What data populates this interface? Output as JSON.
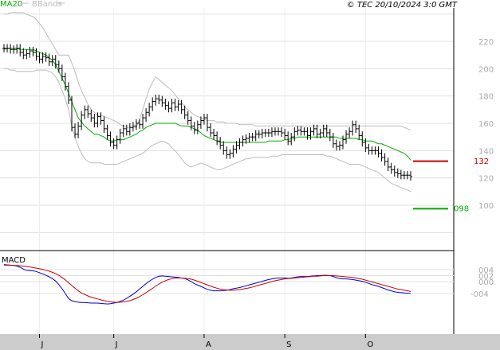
{
  "header": {
    "ma_label": "MA20",
    "bb_label": "BBands",
    "copyright": "© TEC 20/10/2024 3:0 GMT"
  },
  "macd_label": "MACD",
  "colors": {
    "price": "#000000",
    "ma": "#00aa00",
    "bbands": "#bbbbbb",
    "resistance": "#cc0000",
    "support": "#00aa00",
    "macd": "#0000cc",
    "signal": "#cc0000",
    "grid": "#e0e0e0",
    "frame": "#000000"
  },
  "levels": {
    "resistance": {
      "value": 132,
      "label": "132"
    },
    "support": {
      "value": 98,
      "label": "098"
    }
  },
  "chart_data": [
    {
      "type": "ohlc",
      "ylim": [
        72,
        245
      ],
      "yticks": [
        100,
        120,
        140,
        160,
        180,
        200,
        220
      ],
      "ytick_labels": [
        "100",
        "120",
        "140",
        "160",
        "180",
        "200",
        "220"
      ],
      "xlabels": [
        "J",
        "J",
        "A",
        "S",
        "O"
      ],
      "xlabel_index": [
        11,
        34,
        62,
        87,
        112
      ],
      "grid": true,
      "num_bars": 127,
      "close": [
        215,
        215,
        214,
        214,
        215,
        212,
        210,
        211,
        213,
        212,
        209,
        207,
        209,
        208,
        205,
        207,
        203,
        200,
        194,
        187,
        177,
        157,
        152,
        158,
        166,
        170,
        167,
        164,
        160,
        165,
        162,
        156,
        151,
        146,
        144,
        148,
        153,
        156,
        154,
        157,
        158,
        160,
        159,
        164,
        168,
        172,
        176,
        178,
        177,
        175,
        173,
        171,
        175,
        172,
        174,
        170,
        166,
        162,
        158,
        155,
        159,
        162,
        164,
        157,
        153,
        151,
        147,
        144,
        140,
        137,
        138,
        141,
        144,
        146,
        148,
        149,
        150,
        150,
        152,
        152,
        153,
        153,
        153,
        154,
        154,
        154,
        153,
        151,
        147,
        150,
        154,
        155,
        154,
        154,
        151,
        154,
        156,
        152,
        153,
        156,
        153,
        150,
        145,
        143,
        144,
        148,
        152,
        154,
        159,
        156,
        151,
        146,
        142,
        140,
        140,
        140,
        138,
        135,
        132,
        128,
        126,
        124,
        123,
        122,
        122,
        122,
        121
      ],
      "bb_upper": [
        240,
        240,
        241,
        241,
        241,
        241,
        241,
        240,
        239,
        238,
        236,
        233,
        230,
        226,
        222,
        218,
        214,
        210,
        210,
        210,
        210,
        204,
        198,
        190,
        184,
        179,
        174,
        170,
        168,
        166,
        166,
        165,
        164,
        163,
        162,
        161,
        159,
        158,
        157,
        157,
        157,
        157,
        163,
        170,
        178,
        185,
        190,
        194,
        192,
        190,
        188,
        186,
        184,
        181,
        178,
        175,
        172,
        170,
        168,
        166,
        165,
        164,
        163,
        162,
        162,
        162,
        161,
        161,
        161,
        160,
        160,
        160,
        160,
        159,
        159,
        159,
        159,
        159,
        158,
        158,
        158,
        158,
        158,
        158,
        158,
        158,
        158,
        158,
        158,
        158,
        158,
        158,
        158,
        158,
        158,
        158,
        158,
        158,
        158,
        158,
        158,
        158,
        158,
        158,
        158,
        158,
        158,
        158,
        158,
        158,
        158,
        158,
        158,
        158,
        158,
        158,
        158,
        158,
        158,
        158,
        158,
        158,
        158,
        158,
        157,
        156,
        155
      ],
      "bb_lower": [
        200,
        200,
        199,
        199,
        198,
        198,
        198,
        198,
        198,
        198,
        199,
        199,
        199,
        199,
        198,
        197,
        194,
        190,
        184,
        178,
        170,
        158,
        150,
        143,
        138,
        134,
        132,
        131,
        131,
        131,
        131,
        130,
        130,
        130,
        130,
        130,
        131,
        132,
        133,
        134,
        135,
        136,
        137,
        138,
        140,
        142,
        144,
        145,
        146,
        147,
        146,
        145,
        142,
        140,
        137,
        134,
        131,
        129,
        128,
        129,
        130,
        131,
        130,
        129,
        128,
        127,
        126,
        126,
        127,
        128,
        129,
        130,
        131,
        132,
        133,
        134,
        134,
        135,
        135,
        135,
        135,
        135,
        135,
        136,
        136,
        136,
        137,
        137,
        137,
        137,
        137,
        137,
        137,
        137,
        137,
        137,
        137,
        137,
        137,
        137,
        136,
        136,
        135,
        134,
        133,
        132,
        131,
        130,
        130,
        130,
        130,
        129,
        128,
        127,
        126,
        125,
        124,
        122,
        120,
        118,
        116,
        115,
        114,
        113,
        112,
        111,
        110
      ],
      "ma20": [
        214,
        215,
        215,
        215,
        215,
        214,
        214,
        214,
        214,
        214,
        213,
        212,
        211,
        210,
        208,
        206,
        203,
        198,
        193,
        188,
        182,
        176,
        170,
        164,
        161,
        158,
        156,
        154,
        152,
        152,
        151,
        150,
        148,
        147,
        147,
        148,
        148,
        148,
        149,
        150,
        151,
        152,
        154,
        155,
        157,
        158,
        159,
        160,
        160,
        160,
        160,
        160,
        160,
        160,
        159,
        158,
        158,
        158,
        157,
        156,
        155,
        153,
        151,
        150,
        149,
        148,
        147,
        146,
        146,
        146,
        146,
        146,
        146,
        146,
        146,
        146,
        146,
        146,
        146,
        146,
        146,
        146,
        147,
        147,
        147,
        147,
        147,
        148,
        148,
        149,
        149,
        150,
        150,
        150,
        150,
        150,
        150,
        150,
        150,
        150,
        150,
        150,
        150,
        150,
        149,
        149,
        149,
        149,
        149,
        149,
        148,
        148,
        147,
        147,
        147,
        146,
        145,
        145,
        144,
        143,
        142,
        141,
        140,
        139,
        138,
        136,
        133
      ]
    },
    {
      "type": "line",
      "title": "MACD",
      "ylim": [
        -0.0075,
        0.0075
      ],
      "yticks": [
        0.004,
        0.002,
        0,
        -0.004
      ],
      "ytick_labels": [
        "004",
        "002",
        "000",
        "-004"
      ],
      "num_points": 127,
      "series": [
        {
          "values": [
            0.0057,
            0.0056,
            0.0055,
            0.0054,
            0.0052,
            0.0048,
            0.0042,
            0.0038,
            0.0037,
            0.0036,
            0.0034,
            0.003,
            0.0026,
            0.0021,
            0.0016,
            0.001,
            0.0002,
            -0.001,
            -0.0024,
            -0.004,
            -0.0057,
            -0.0064,
            -0.0067,
            -0.0069,
            -0.007,
            -0.007,
            -0.0071,
            -0.0072,
            -0.0072,
            -0.0072,
            -0.0073,
            -0.0074,
            -0.0075,
            -0.0074,
            -0.0072,
            -0.007,
            -0.0066,
            -0.0062,
            -0.0056,
            -0.0049,
            -0.0042,
            -0.0034,
            -0.0025,
            -0.0016,
            -0.0007,
            0.0001,
            0.0008,
            0.0014,
            0.0018,
            0.0019,
            0.0018,
            0.0017,
            0.0016,
            0.0015,
            0.0014,
            0.0012,
            0.001,
            0.0006,
            0.0,
            -0.0007,
            -0.0012,
            -0.0016,
            -0.0021,
            -0.0026,
            -0.0029,
            -0.0031,
            -0.0031,
            -0.0031,
            -0.003,
            -0.0029,
            -0.0027,
            -0.0024,
            -0.0022,
            -0.002,
            -0.0017,
            -0.0014,
            -0.0011,
            -0.0008,
            -0.0005,
            -0.0002,
            0.0001,
            0.0004,
            0.0007,
            0.0009,
            0.0011,
            0.0012,
            0.0012,
            0.0012,
            0.0011,
            0.0012,
            0.0014,
            0.0016,
            0.0017,
            0.0017,
            0.0017,
            0.0018,
            0.0019,
            0.002,
            0.002,
            0.0021,
            0.0021,
            0.002,
            0.0017,
            0.0013,
            0.001,
            0.0009,
            0.0009,
            0.0008,
            0.0007,
            0.0005,
            0.0003,
            0.0001,
            -0.0002,
            -0.0006,
            -0.001,
            -0.0013,
            -0.0016,
            -0.002,
            -0.0024,
            -0.0028,
            -0.0031,
            -0.0034,
            -0.0036,
            -0.0037,
            -0.0038,
            -0.0039,
            -0.0039
          ]
        },
        {
          "values": [
            0.0055,
            0.0055,
            0.0055,
            0.0054,
            0.0054,
            0.0053,
            0.0052,
            0.0051,
            0.0049,
            0.0047,
            0.0045,
            0.0043,
            0.0041,
            0.0038,
            0.0035,
            0.0031,
            0.0027,
            0.0021,
            0.0014,
            0.0006,
            -0.0004,
            -0.0013,
            -0.0022,
            -0.0031,
            -0.0038,
            -0.0043,
            -0.0048,
            -0.0052,
            -0.0055,
            -0.0058,
            -0.0061,
            -0.0064,
            -0.0066,
            -0.0068,
            -0.0069,
            -0.007,
            -0.0069,
            -0.0068,
            -0.0066,
            -0.0064,
            -0.006,
            -0.0056,
            -0.005,
            -0.0044,
            -0.0037,
            -0.003,
            -0.0023,
            -0.0015,
            -0.0008,
            -0.0002,
            0.0003,
            0.0007,
            0.001,
            0.0012,
            0.0012,
            0.0012,
            0.0011,
            0.001,
            0.0008,
            0.0005,
            0.0001,
            -0.0003,
            -0.0007,
            -0.0011,
            -0.0015,
            -0.0019,
            -0.0022,
            -0.0025,
            -0.0027,
            -0.0028,
            -0.0029,
            -0.0029,
            -0.0028,
            -0.0027,
            -0.0025,
            -0.0023,
            -0.0021,
            -0.0018,
            -0.0015,
            -0.0012,
            -0.0009,
            -0.0006,
            -0.0003,
            -0.0,
            0.0003,
            0.0005,
            0.0007,
            0.0009,
            0.001,
            0.0011,
            0.0012,
            0.0013,
            0.0014,
            0.0015,
            0.0016,
            0.0017,
            0.0018,
            0.0018,
            0.0019,
            0.002,
            0.002,
            0.002,
            0.002,
            0.0019,
            0.0018,
            0.0017,
            0.0016,
            0.0015,
            0.0014,
            0.0012,
            0.001,
            0.0008,
            0.0005,
            0.0002,
            -0.0001,
            -0.0004,
            -0.0007,
            -0.001,
            -0.0013,
            -0.0016,
            -0.0019,
            -0.0022,
            -0.0025,
            -0.0027,
            -0.0029,
            -0.0031,
            -0.0033
          ]
        }
      ]
    }
  ]
}
